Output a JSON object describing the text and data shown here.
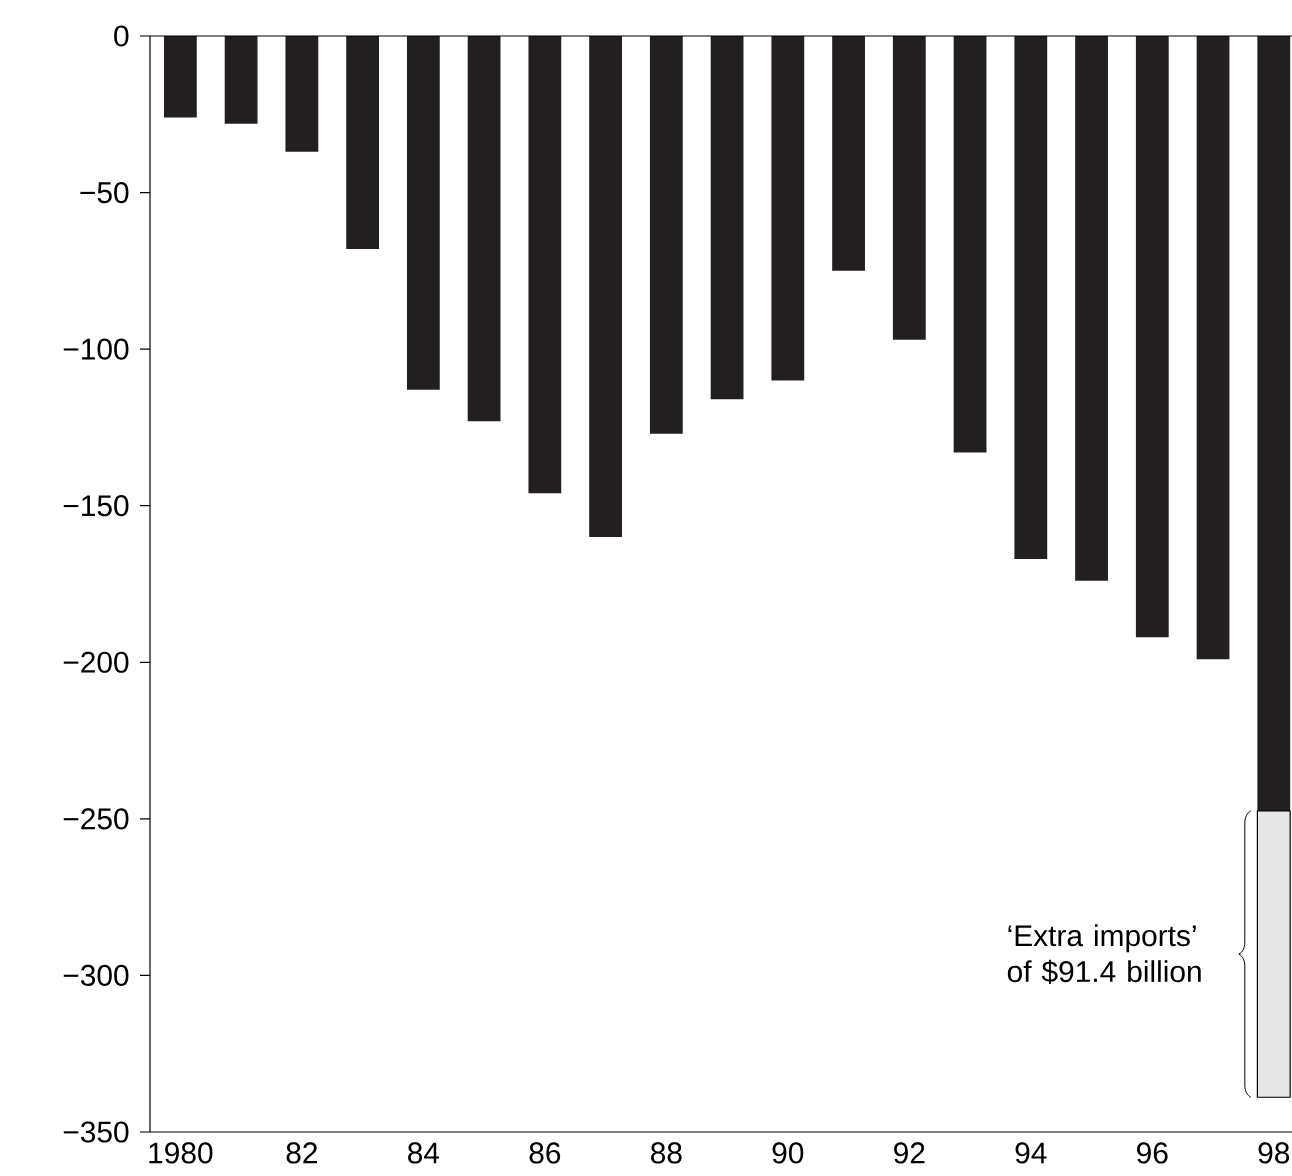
{
  "chart_data": {
    "type": "bar",
    "stacked": true,
    "grid": false,
    "categories": [
      "1980",
      null,
      "82",
      null,
      "84",
      null,
      "86",
      null,
      "88",
      null,
      "90",
      null,
      "92",
      null,
      "94",
      null,
      "96",
      null,
      "98"
    ],
    "series": [
      {
        "color": "#231f20",
        "values": [
          -26,
          -28,
          -37,
          -68,
          -113,
          -123,
          -146,
          -160,
          -127,
          -116,
          -110,
          -75,
          -97,
          -133,
          -167,
          -174,
          -192,
          -199,
          -247.5
        ]
      },
      {
        "color": "#e6e6e6",
        "values": [
          null,
          null,
          null,
          null,
          null,
          null,
          null,
          null,
          null,
          null,
          null,
          null,
          null,
          null,
          null,
          null,
          null,
          null,
          -91.4
        ]
      }
    ],
    "ylim": [
      -350,
      0
    ],
    "yticks": [
      0,
      {
        "value": -50,
        "label": "−50"
      },
      {
        "value": -100,
        "label": "−100"
      },
      {
        "value": -150,
        "label": "−150"
      },
      {
        "value": -200,
        "label": "−200"
      },
      {
        "value": -250,
        "label": "−250"
      },
      {
        "value": -300,
        "label": "−300"
      },
      {
        "value": -350,
        "label": "−350"
      }
    ],
    "annotations": [
      "‘Extra imports’ of $91.4 billion"
    ]
  }
}
